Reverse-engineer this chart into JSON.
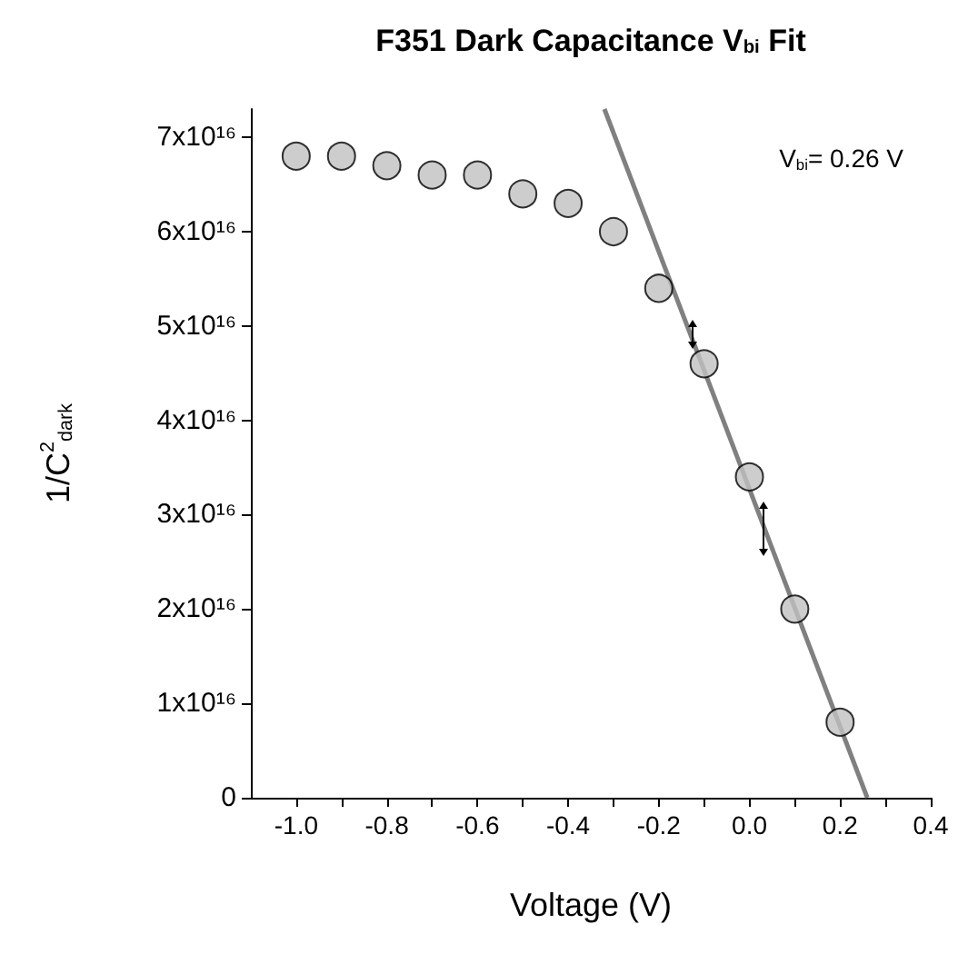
{
  "chart_data": {
    "type": "scatter",
    "title": "F351 Dark Capacitance V$_{bi}$ Fit",
    "xlabel": "Voltage (V)",
    "ylabel": "1/C$^{2}$$_{dark}$",
    "annotations": [
      "V$_{bi}$= 0.26 V"
    ],
    "x": [
      -1.0,
      -0.9,
      -0.8,
      -0.7,
      -0.6,
      -0.5,
      -0.4,
      -0.3,
      -0.2,
      -0.1,
      0.0,
      0.1,
      0.2
    ],
    "series": [
      {
        "color": "#c0c0c0",
        "marker": "circle",
        "values": [
          6.8e+16,
          6.8e+16,
          6.7e+16,
          6.6e+16,
          6.6e+16,
          6.4e+16,
          6.3e+16,
          6e+16,
          5.4e+16,
          4.6e+16,
          3.4e+16,
          2e+16,
          8000000000000000.0
        ]
      },
      {
        "type": "line",
        "color": "#808080",
        "marker": "none",
        "x": [
          -0.32,
          0.26
        ],
        "values": [
          7.3e+16,
          0
        ]
      }
    ],
    "xlim": [
      -1.1,
      0.4
    ],
    "ylim": [
      0,
      7.3e+16
    ],
    "xticks": [
      {
        "value": -1.0,
        "label": "-1.0"
      },
      {
        "value": -0.9,
        "label": null
      },
      {
        "value": -0.8,
        "label": "-0.8"
      },
      {
        "value": -0.7,
        "label": null
      },
      {
        "value": -0.6,
        "label": "-0.6"
      },
      {
        "value": -0.5,
        "label": null
      },
      {
        "value": -0.4,
        "label": "-0.4"
      },
      {
        "value": -0.3,
        "label": null
      },
      {
        "value": -0.2,
        "label": "-0.2"
      },
      {
        "value": -0.1,
        "label": null
      },
      {
        "value": 0.0,
        "label": "0.0"
      },
      {
        "value": 0.1,
        "label": null
      },
      {
        "value": 0.2,
        "label": "0.2"
      },
      {
        "value": 0.3,
        "label": null
      },
      {
        "value": 0.4,
        "label": "0.4"
      }
    ],
    "yticks": [
      0,
      {
        "value": 1e+16,
        "label": "1x10¹⁶"
      },
      {
        "value": 2e+16,
        "label": "2x10¹⁶"
      },
      {
        "value": 3e+16,
        "label": "3x10¹⁶"
      },
      {
        "value": 4e+16,
        "label": "4x10¹⁶"
      },
      {
        "value": 5e+16,
        "label": "5x10¹⁶"
      },
      {
        "value": 6e+16,
        "label": "6x10¹⁶"
      },
      {
        "value": 7e+16,
        "label": "7x10¹⁶"
      }
    ],
    "line_style": "solid"
  }
}
